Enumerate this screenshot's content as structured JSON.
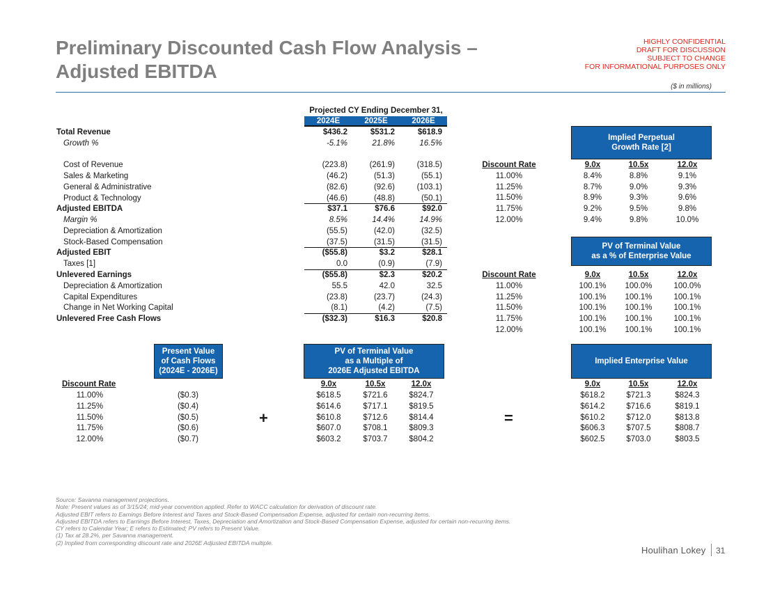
{
  "header": {
    "title_line1": "Preliminary Discounted Cash Flow Analysis –",
    "title_line2": "Adjusted EBITDA",
    "confidential": [
      "HIGHLY CONFIDENTIAL",
      "DRAFT FOR DISCUSSION",
      "SUBJECT TO CHANGE",
      "FOR INFORMATIONAL PURPOSES ONLY"
    ],
    "units": "($ in millions)"
  },
  "projection": {
    "period_label": "Projected CY Ending December 31,",
    "years": [
      "2024E",
      "2025E",
      "2026E"
    ],
    "rows": [
      {
        "label": "Total Revenue",
        "values": [
          "$436.2",
          "$531.2",
          "$618.9"
        ]
      },
      {
        "label": "Growth %",
        "values": [
          "-5.1%",
          "21.8%",
          "16.5%"
        ]
      },
      {
        "label": "Cost of Revenue",
        "values": [
          "(223.8)",
          "(261.9)",
          "(318.5)"
        ]
      },
      {
        "label": "Sales & Marketing",
        "values": [
          "(46.2)",
          "(51.3)",
          "(55.1)"
        ]
      },
      {
        "label": "General & Administrative",
        "values": [
          "(82.6)",
          "(92.6)",
          "(103.1)"
        ]
      },
      {
        "label": "Product & Technology",
        "values": [
          "(46.6)",
          "(48.8)",
          "(50.1)"
        ]
      },
      {
        "label": "Adjusted EBITDA",
        "values": [
          "$37.1",
          "$76.6",
          "$92.0"
        ]
      },
      {
        "label": "Margin %",
        "values": [
          "8.5%",
          "14.4%",
          "14.9%"
        ]
      },
      {
        "label": "Depreciation & Amortization",
        "values": [
          "(55.5)",
          "(42.0)",
          "(32.5)"
        ]
      },
      {
        "label": "Stock-Based Compensation",
        "values": [
          "(37.5)",
          "(31.5)",
          "(31.5)"
        ]
      },
      {
        "label": "Adjusted EBIT",
        "values": [
          "($55.8)",
          "$3.2",
          "$28.1"
        ]
      },
      {
        "label": "Taxes [1]",
        "values": [
          "0.0",
          "(0.9)",
          "(7.9)"
        ]
      },
      {
        "label": "Unlevered Earnings",
        "values": [
          "($55.8)",
          "$2.3",
          "$20.2"
        ]
      },
      {
        "label": "Depreciation & Amortization",
        "values": [
          "55.5",
          "42.0",
          "32.5"
        ]
      },
      {
        "label": "Capital Expenditures",
        "values": [
          "(23.8)",
          "(23.7)",
          "(24.3)"
        ]
      },
      {
        "label": "Change in Net Working Capital",
        "values": [
          "(8.1)",
          "(4.2)",
          "(7.5)"
        ]
      },
      {
        "label": "Unlevered Free Cash Flows",
        "values": [
          "($32.3)",
          "$16.3",
          "$20.8"
        ]
      }
    ]
  },
  "discount_label": "Discount Rate",
  "multiples": [
    "9.0x",
    "10.5x",
    "12.0x"
  ],
  "discount_rates": [
    "11.00%",
    "11.25%",
    "11.50%",
    "11.75%",
    "12.00%"
  ],
  "growth_table": {
    "title_line1": "Implied Perpetual",
    "title_line2": "Growth Rate [2]",
    "rows": [
      [
        "8.4%",
        "8.8%",
        "9.1%"
      ],
      [
        "8.7%",
        "9.0%",
        "9.3%"
      ],
      [
        "8.9%",
        "9.3%",
        "9.6%"
      ],
      [
        "9.2%",
        "9.5%",
        "9.8%"
      ],
      [
        "9.4%",
        "9.8%",
        "10.0%"
      ]
    ]
  },
  "tv_pct_table": {
    "title_line1": "PV of Terminal Value",
    "title_line2": "as a % of Enterprise Value",
    "rows": [
      [
        "100.1%",
        "100.0%",
        "100.0%"
      ],
      [
        "100.1%",
        "100.1%",
        "100.1%"
      ],
      [
        "100.1%",
        "100.1%",
        "100.1%"
      ],
      [
        "100.1%",
        "100.1%",
        "100.1%"
      ],
      [
        "100.1%",
        "100.1%",
        "100.1%"
      ]
    ]
  },
  "pv_cf": {
    "title_line1": "Present Value",
    "title_line2": "of Cash Flows",
    "title_line3": "(2024E - 2026E)",
    "values": [
      "($0.3)",
      "($0.4)",
      "($0.5)",
      "($0.6)",
      "($0.7)"
    ]
  },
  "pv_tv": {
    "title_line1": "PV of Terminal Value",
    "title_line2": "as a Multiple of",
    "title_line3": "2026E Adjusted EBITDA",
    "rows": [
      [
        "$618.5",
        "$721.6",
        "$824.7"
      ],
      [
        "$614.6",
        "$717.1",
        "$819.5"
      ],
      [
        "$610.8",
        "$712.6",
        "$814.4"
      ],
      [
        "$607.0",
        "$708.1",
        "$809.3"
      ],
      [
        "$603.2",
        "$703.7",
        "$804.2"
      ]
    ]
  },
  "ev": {
    "title": "Implied Enterprise Value",
    "rows": [
      [
        "$618.2",
        "$721.3",
        "$824.3"
      ],
      [
        "$614.2",
        "$716.6",
        "$819.1"
      ],
      [
        "$610.2",
        "$712.0",
        "$813.8"
      ],
      [
        "$606.3",
        "$707.5",
        "$808.7"
      ],
      [
        "$602.5",
        "$703.0",
        "$803.5"
      ]
    ]
  },
  "operators": {
    "plus": "+",
    "equals": "="
  },
  "footnotes": [
    "Source: Savanna management projections.",
    "Note: Present values as of 3/15/24; mid-year convention applied. Refer to WACC calculation for derivation of discount rate.",
    "Adjusted EBIT refers to Earnings Before Interest and Taxes and Stock-Based Compensation Expense, adjusted for certain non-recurring items.",
    "Adjusted EBITDA refers to Earnings Before Interest, Taxes, Depreciation and Amortization and Stock-Based Compensation Expense, adjusted for certain non-recurring items.",
    "CY refers to Calendar Year; E refers to Estimated; PV refers to Present Value.",
    "(1)     Tax at 28.2%, per Savanna management.",
    "(2)     Implied from corresponding discount rate and 2026E Adjusted EBITDA multiple."
  ],
  "footer": {
    "brand": "Houlihan Lokey",
    "page": "31"
  }
}
